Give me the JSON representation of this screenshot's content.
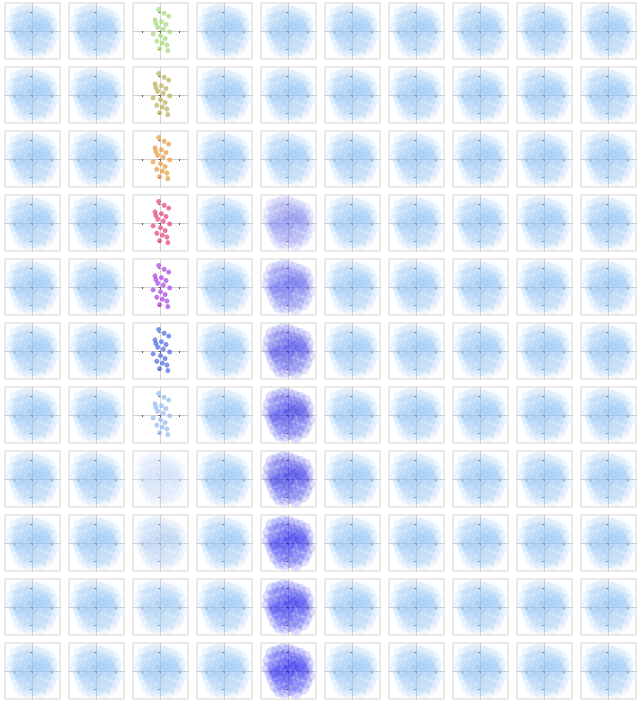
{
  "chart_data": {
    "type": "scatter",
    "xlim": [
      -3,
      3
    ],
    "ylim": [
      -3,
      3
    ],
    "xticks": [
      -2,
      0,
      2
    ],
    "yticks": [
      -2,
      0,
      2
    ],
    "grid": false,
    "tick_labels": false,
    "cloud": {
      "x": [
        -1.8,
        -1.2,
        -0.6,
        0.0,
        0.6,
        1.2,
        1.8,
        -2.1,
        -1.5,
        -0.9,
        -0.3,
        0.3,
        0.9,
        1.5,
        2.1,
        -2.2,
        -1.6,
        -1.0,
        -0.4,
        0.2,
        0.8,
        1.4,
        2.0,
        -1.9,
        -1.3,
        -0.7,
        -0.1,
        0.5,
        1.1,
        1.7,
        2.2,
        -1.7,
        -1.1,
        -0.5,
        0.1,
        0.7,
        1.3,
        1.9,
        -1.4,
        -0.8,
        -0.2,
        0.4,
        1.0,
        1.6,
        -1.0,
        -0.4,
        0.2,
        0.8,
        -0.6,
        0.0,
        0.6,
        -1.3,
        1.2,
        -0.2,
        0.3,
        -0.8,
        0.9,
        -1.6,
        1.6,
        0.0
      ],
      "y": [
        1.9,
        2.1,
        2.3,
        2.2,
        2.0,
        1.8,
        1.5,
        1.1,
        1.3,
        1.5,
        1.6,
        1.4,
        1.2,
        1.0,
        0.8,
        0.3,
        0.5,
        0.6,
        0.7,
        0.6,
        0.5,
        0.4,
        0.2,
        -0.3,
        -0.1,
        0.0,
        -0.2,
        0.1,
        -0.1,
        -0.3,
        -0.5,
        -0.9,
        -0.8,
        -0.6,
        -0.7,
        -0.9,
        -1.0,
        -1.2,
        -1.6,
        -1.4,
        -1.3,
        -1.5,
        -1.7,
        -1.8,
        -2.1,
        -2.2,
        -2.0,
        -2.3,
        0.9,
        1.0,
        0.9,
        -0.5,
        0.7,
        -1.0,
        0.3,
        0.2,
        -0.4,
        0.0,
        0.1,
        0.0
      ]
    },
    "panels": [
      [
        {
          "color": "#8ec2f5"
        },
        {
          "color": "#8ec2f5"
        },
        {
          "color": "#9ad66a",
          "x": [
            -0.2,
            0.4,
            0.9,
            -0.6,
            0.1,
            0.6,
            -0.3,
            0.3,
            1.0,
            -0.8,
            0.0,
            0.5,
            -0.4,
            0.2,
            0.7,
            -0.1,
            0.8,
            -0.5
          ],
          "y": [
            2.3,
            1.9,
            1.6,
            1.2,
            1.0,
            0.7,
            0.4,
            0.2,
            -0.1,
            -0.3,
            -0.5,
            -0.8,
            -1.1,
            -1.3,
            -1.5,
            -1.9,
            -2.1,
            0.8
          ]
        },
        {
          "color": "#8ec2f5"
        },
        {
          "color": "#8ec2f5"
        },
        {
          "color": "#8ec2f5"
        },
        {
          "color": "#8ec2f5"
        },
        {
          "color": "#8ec2f5"
        },
        {
          "color": "#8ec2f5"
        },
        {
          "color": "#8ec2f5"
        }
      ],
      [
        {
          "color": "#8ec2f5"
        },
        {
          "color": "#8ec2f5"
        },
        {
          "color": "#b0a848",
          "x": [
            -0.2,
            0.4,
            0.9,
            -0.6,
            0.1,
            0.6,
            -0.3,
            0.3,
            1.0,
            -0.8,
            0.0,
            0.5,
            -0.4,
            0.2,
            0.7,
            -0.1,
            0.8,
            -0.5
          ],
          "y": [
            2.3,
            1.9,
            1.6,
            1.2,
            1.0,
            0.7,
            0.4,
            0.2,
            -0.1,
            -0.3,
            -0.5,
            -0.8,
            -1.1,
            -1.3,
            -1.5,
            -1.9,
            -2.1,
            0.8
          ]
        },
        {
          "color": "#8ec2f5"
        },
        {
          "color": "#8ec2f5"
        },
        {
          "color": "#8ec2f5"
        },
        {
          "color": "#8ec2f5"
        },
        {
          "color": "#8ec2f5"
        },
        {
          "color": "#8ec2f5"
        },
        {
          "color": "#8ec2f5"
        }
      ],
      [
        {
          "color": "#8ec2f5"
        },
        {
          "color": "#8ec2f5"
        },
        {
          "color": "#e8902a",
          "x": [
            -0.2,
            0.4,
            0.9,
            -0.6,
            0.1,
            0.6,
            -0.3,
            0.3,
            1.0,
            -0.8,
            0.0,
            0.5,
            -0.4,
            0.2,
            0.7,
            -0.1,
            0.8,
            -0.5
          ],
          "y": [
            2.3,
            1.9,
            1.6,
            1.2,
            1.0,
            0.7,
            0.4,
            0.2,
            -0.1,
            -0.3,
            -0.5,
            -0.8,
            -1.1,
            -1.3,
            -1.5,
            -1.9,
            -2.1,
            0.8
          ]
        },
        {
          "color": "#8ec2f5"
        },
        {
          "color": "#8ec2f5"
        },
        {
          "color": "#8ec2f5"
        },
        {
          "color": "#8ec2f5"
        },
        {
          "color": "#8ec2f5"
        },
        {
          "color": "#8ec2f5"
        },
        {
          "color": "#8ec2f5"
        }
      ],
      [
        {
          "color": "#8ec2f5"
        },
        {
          "color": "#8ec2f5"
        },
        {
          "color": "#e3307a",
          "x": [
            -0.2,
            0.4,
            0.9,
            -0.6,
            0.1,
            0.6,
            -0.3,
            0.3,
            1.0,
            -0.8,
            0.0,
            0.5,
            -0.4,
            0.2,
            0.7,
            -0.1,
            0.8,
            -0.5
          ],
          "y": [
            2.3,
            1.9,
            1.6,
            1.2,
            1.0,
            0.7,
            0.4,
            0.2,
            -0.1,
            -0.3,
            -0.5,
            -0.8,
            -1.1,
            -1.3,
            -1.5,
            -1.9,
            -2.1,
            0.8
          ]
        },
        {
          "color": "#8ec2f5"
        },
        {
          "color": "#7a80ee"
        },
        {
          "color": "#8ec2f5"
        },
        {
          "color": "#8ec2f5"
        },
        {
          "color": "#8ec2f5"
        },
        {
          "color": "#8ec2f5"
        },
        {
          "color": "#8ec2f5"
        }
      ],
      [
        {
          "color": "#8ec2f5"
        },
        {
          "color": "#8ec2f5"
        },
        {
          "color": "#a030e0",
          "x": [
            -0.2,
            0.4,
            0.9,
            -0.6,
            0.1,
            0.6,
            -0.3,
            0.3,
            1.0,
            -0.8,
            0.0,
            0.5,
            -0.4,
            0.2,
            0.7,
            -0.1,
            0.8,
            -0.5
          ],
          "y": [
            2.3,
            1.9,
            1.6,
            1.2,
            1.0,
            0.7,
            0.4,
            0.2,
            -0.1,
            -0.3,
            -0.5,
            -0.8,
            -1.1,
            -1.3,
            -1.5,
            -1.9,
            -2.1,
            0.8
          ]
        },
        {
          "color": "#8ec2f5"
        },
        {
          "color": "#5a5cea"
        },
        {
          "color": "#8ec2f5"
        },
        {
          "color": "#8ec2f5"
        },
        {
          "color": "#8ec2f5"
        },
        {
          "color": "#8ec2f5"
        },
        {
          "color": "#8ec2f5"
        }
      ],
      [
        {
          "color": "#8ec2f5"
        },
        {
          "color": "#8ec2f5"
        },
        {
          "color": "#3a5ae0",
          "x": [
            -0.2,
            0.4,
            0.9,
            -0.6,
            0.1,
            0.6,
            -0.3,
            0.3,
            1.0,
            -0.8,
            0.0,
            0.5,
            -0.4,
            0.2,
            0.7,
            -0.1,
            0.8,
            -0.5
          ],
          "y": [
            2.3,
            1.9,
            1.6,
            1.2,
            1.0,
            0.7,
            0.4,
            0.2,
            -0.1,
            -0.3,
            -0.5,
            -0.8,
            -1.1,
            -1.3,
            -1.5,
            -1.9,
            -2.1,
            0.8
          ]
        },
        {
          "color": "#8ec2f5"
        },
        {
          "color": "#4040e8"
        },
        {
          "color": "#8ec2f5"
        },
        {
          "color": "#8ec2f5"
        },
        {
          "color": "#8ec2f5"
        },
        {
          "color": "#8ec2f5"
        },
        {
          "color": "#8ec2f5"
        }
      ],
      [
        {
          "color": "#8ec2f5"
        },
        {
          "color": "#8ec2f5"
        },
        {
          "color": "#8ab4f0",
          "x": [
            -0.2,
            0.4,
            0.9,
            -0.6,
            0.1,
            0.6,
            -0.3,
            0.3,
            1.0,
            -0.8,
            0.0,
            0.5,
            -0.4,
            0.2,
            0.7,
            -0.1,
            0.8,
            -0.5
          ],
          "y": [
            2.3,
            1.9,
            1.6,
            1.2,
            1.0,
            0.7,
            0.4,
            0.2,
            -0.1,
            -0.3,
            -0.5,
            -0.8,
            -1.1,
            -1.3,
            -1.5,
            -1.9,
            -2.1,
            0.8
          ]
        },
        {
          "color": "#8ec2f5"
        },
        {
          "color": "#3434e8"
        },
        {
          "color": "#8ec2f5"
        },
        {
          "color": "#8ec2f5"
        },
        {
          "color": "#8ec2f5"
        },
        {
          "color": "#8ec2f5"
        },
        {
          "color": "#8ec2f5"
        }
      ],
      [
        {
          "color": "#8ec2f5"
        },
        {
          "color": "#8ec2f5"
        },
        {
          "color": "#c4dcf7"
        },
        {
          "color": "#8ec2f5"
        },
        {
          "color": "#2c2ce8"
        },
        {
          "color": "#8ec2f5"
        },
        {
          "color": "#8ec2f5"
        },
        {
          "color": "#8ec2f5"
        },
        {
          "color": "#8ec2f5"
        },
        {
          "color": "#8ec2f5"
        }
      ],
      [
        {
          "color": "#8ec2f5"
        },
        {
          "color": "#8ec2f5"
        },
        {
          "color": "#acd0f5"
        },
        {
          "color": "#8ec2f5"
        },
        {
          "color": "#2828ea"
        },
        {
          "color": "#8ec2f5"
        },
        {
          "color": "#8ec2f5"
        },
        {
          "color": "#8ec2f5"
        },
        {
          "color": "#8ec2f5"
        },
        {
          "color": "#8ec2f5"
        }
      ],
      [
        {
          "color": "#8ec2f5"
        },
        {
          "color": "#8ec2f5"
        },
        {
          "color": "#9cc8f5"
        },
        {
          "color": "#8ec2f5"
        },
        {
          "color": "#2424ec"
        },
        {
          "color": "#8ec2f5"
        },
        {
          "color": "#8ec2f5"
        },
        {
          "color": "#8ec2f5"
        },
        {
          "color": "#8ec2f5"
        },
        {
          "color": "#8ec2f5"
        }
      ],
      [
        {
          "color": "#8ec2f5"
        },
        {
          "color": "#8ec2f5"
        },
        {
          "color": "#8ec2f5"
        },
        {
          "color": "#8ec2f5"
        },
        {
          "color": "#2020ee"
        },
        {
          "color": "#8ec2f5"
        },
        {
          "color": "#8ec2f5"
        },
        {
          "color": "#8ec2f5"
        },
        {
          "color": "#8ec2f5"
        },
        {
          "color": "#8ec2f5"
        }
      ]
    ]
  }
}
